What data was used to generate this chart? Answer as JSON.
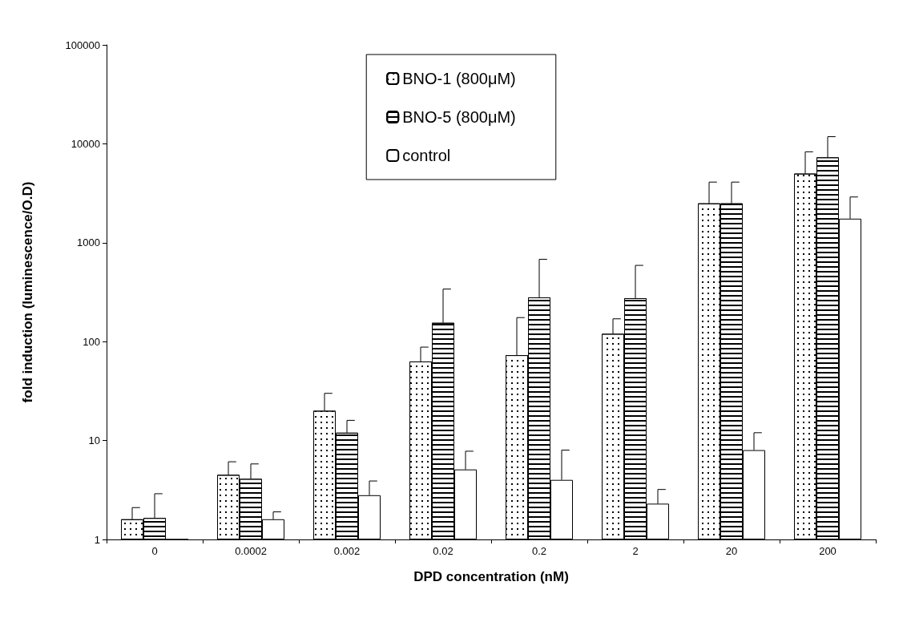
{
  "chart_data": {
    "type": "bar",
    "xlabel": "DPD concentration (nM)",
    "ylabel": "fold induction (luminescence/O.D)",
    "categories": [
      "0",
      "0.0002",
      "0.002",
      "0.02",
      "0.2",
      "2",
      "20",
      "200"
    ],
    "series": [
      {
        "name": "BNO-1 (800μM)",
        "color": "#ffffff",
        "values": [
          1.6,
          4.5,
          20,
          63,
          73,
          120,
          2500,
          5000
        ],
        "errors": [
          [
            1.6,
            2.1
          ],
          [
            4.5,
            6.1
          ],
          [
            20,
            30
          ],
          [
            63,
            88
          ],
          [
            73,
            175
          ],
          [
            120,
            170
          ],
          [
            2500,
            4100
          ],
          [
            5000,
            8300
          ]
        ]
      },
      {
        "name": "BNO-5 (800μM)",
        "color": "#ffffff",
        "values": [
          1.65,
          4.1,
          12,
          155,
          280,
          275,
          2500,
          7300
        ],
        "errors": [
          [
            1.65,
            2.9
          ],
          [
            4.1,
            5.8
          ],
          [
            12,
            16
          ],
          [
            155,
            340
          ],
          [
            280,
            680
          ],
          [
            275,
            590
          ],
          [
            2500,
            4100
          ],
          [
            7300,
            11800
          ]
        ]
      },
      {
        "name": "control",
        "color": "#ffffff",
        "values": [
          1,
          1.6,
          2.8,
          5.1,
          4,
          2.3,
          8,
          1750
        ],
        "errors": [
          null,
          [
            1.6,
            1.9
          ],
          [
            2.8,
            3.9
          ],
          [
            5.1,
            7.8
          ],
          [
            4,
            8
          ],
          [
            2.3,
            3.2
          ],
          [
            8,
            12
          ],
          [
            1750,
            2900
          ]
        ]
      }
    ],
    "log": "y",
    "ylim": [
      1,
      100000
    ],
    "yticks": [
      1,
      10,
      100,
      1000,
      10000,
      100000
    ],
    "grid": false,
    "legend": "top"
  }
}
